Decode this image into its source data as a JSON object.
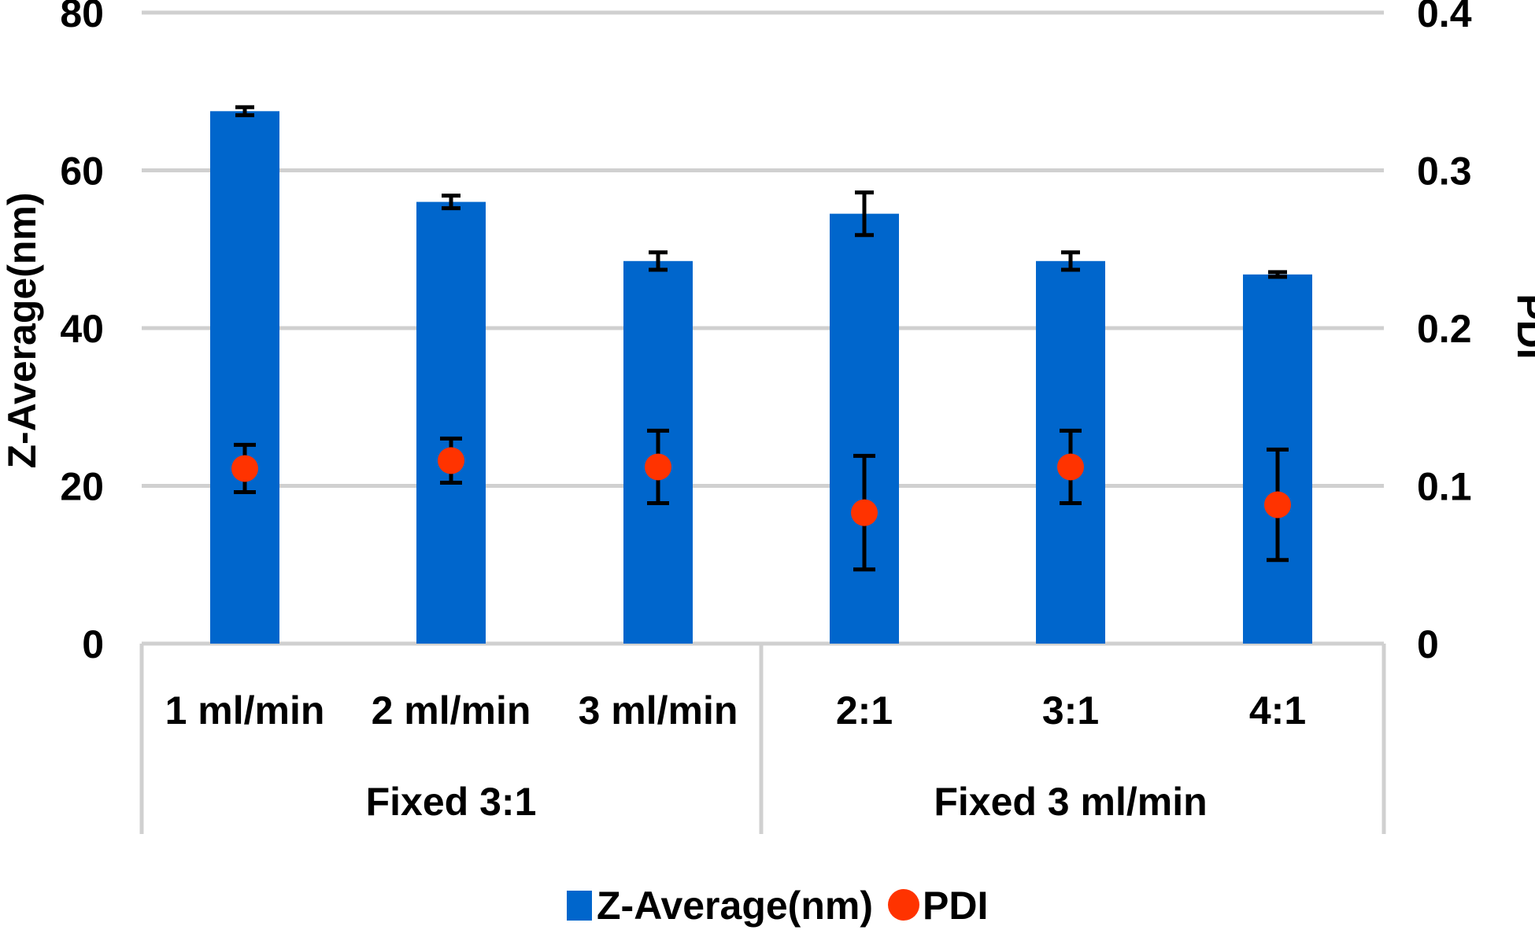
{
  "chart_data": {
    "type": "bar",
    "title": "",
    "categories": [
      "1 ml/min",
      "2 ml/min",
      "3 ml/min",
      "2:1",
      "3:1",
      "4:1"
    ],
    "groups": [
      {
        "label": "Fixed 3:1",
        "categories": [
          "1 ml/min",
          "2 ml/min",
          "3 ml/min"
        ]
      },
      {
        "label": "Fixed 3 ml/min",
        "categories": [
          "2:1",
          "3:1",
          "4:1"
        ]
      }
    ],
    "series": [
      {
        "name": "Z-Average(nm)",
        "type": "bar",
        "axis": "left",
        "color": "#0066cc",
        "values": [
          67.5,
          56,
          48.5,
          54.5,
          48.5,
          46.8
        ],
        "errors": [
          0.5,
          0.8,
          1.1,
          2.7,
          1.1,
          0.3
        ]
      },
      {
        "name": "PDI",
        "type": "scatter",
        "axis": "right",
        "color": "#ff3300",
        "values": [
          0.111,
          0.116,
          0.112,
          0.083,
          0.112,
          0.088
        ],
        "errors": [
          0.015,
          0.014,
          0.023,
          0.036,
          0.023,
          0.035
        ]
      }
    ],
    "ylabel": "Z-Average(nm)",
    "ylim": [
      0,
      80
    ],
    "yticks": [
      "0",
      "20",
      "40",
      "60",
      "80"
    ],
    "y2label": "PDI",
    "y2lim": [
      0,
      0.4
    ],
    "y2ticks": [
      "0",
      "0.1",
      "0.2",
      "0.3",
      "0.4"
    ],
    "grid": true,
    "legend": "bottom"
  }
}
